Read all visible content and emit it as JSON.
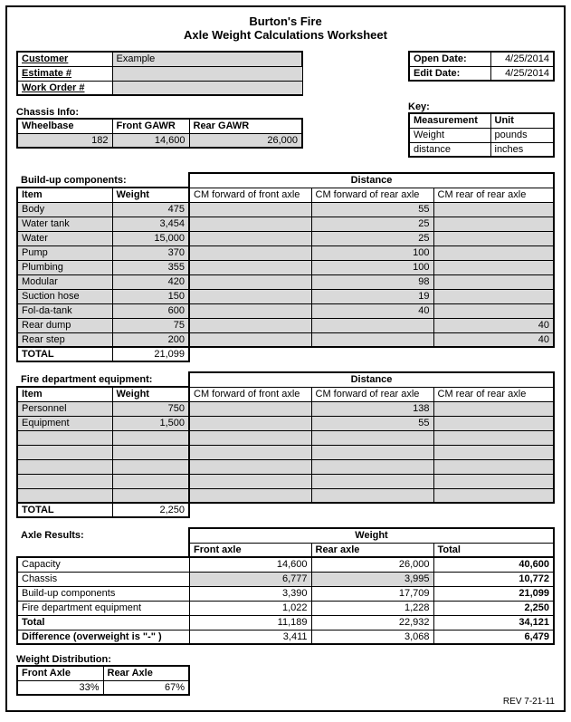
{
  "header": {
    "company": "Burton's Fire",
    "title": "Axle Weight Calculations Worksheet"
  },
  "customer_block": {
    "labels": {
      "customer": "Customer",
      "estimate": "Estimate #",
      "work_order": "Work Order #"
    },
    "customer": "Example",
    "estimate": "",
    "work_order": ""
  },
  "dates_block": {
    "labels": {
      "open": "Open Date:",
      "edit": "Edit Date:"
    },
    "open": "4/25/2014",
    "edit": "4/25/2014"
  },
  "key_block": {
    "heading": "Key:",
    "cols": {
      "measurement": "Measurement",
      "unit": "Unit"
    },
    "rows": [
      {
        "m": "Weight",
        "u": "pounds"
      },
      {
        "m": "distance",
        "u": "inches"
      }
    ]
  },
  "chassis": {
    "heading": "Chassis Info:",
    "cols": {
      "wheelbase": "Wheelbase",
      "front": "Front GAWR",
      "rear": "Rear GAWR"
    },
    "wheelbase": "182",
    "front": "14,600",
    "rear": "26,000"
  },
  "buildup": {
    "heading": "Build-up components:",
    "distance_heading": "Distance",
    "cols": {
      "item": "Item",
      "weight": "Weight",
      "d1": "CM forward of front axle",
      "d2": "CM forward of rear axle",
      "d3": "CM rear of rear axle"
    },
    "rows": [
      {
        "item": "Body",
        "weight": "475",
        "d1": "",
        "d2": "55",
        "d3": ""
      },
      {
        "item": "Water tank",
        "weight": "3,454",
        "d1": "",
        "d2": "25",
        "d3": ""
      },
      {
        "item": "Water",
        "weight": "15,000",
        "d1": "",
        "d2": "25",
        "d3": ""
      },
      {
        "item": "Pump",
        "weight": "370",
        "d1": "",
        "d2": "100",
        "d3": ""
      },
      {
        "item": "Plumbing",
        "weight": "355",
        "d1": "",
        "d2": "100",
        "d3": ""
      },
      {
        "item": "Modular",
        "weight": "420",
        "d1": "",
        "d2": "98",
        "d3": ""
      },
      {
        "item": "Suction hose",
        "weight": "150",
        "d1": "",
        "d2": "19",
        "d3": ""
      },
      {
        "item": "Fol-da-tank",
        "weight": "600",
        "d1": "",
        "d2": "40",
        "d3": ""
      },
      {
        "item": "Rear dump",
        "weight": "75",
        "d1": "",
        "d2": "",
        "d3": "40"
      },
      {
        "item": "Rear step",
        "weight": "200",
        "d1": "",
        "d2": "",
        "d3": "40"
      }
    ],
    "total_label": "TOTAL",
    "total": "21,099"
  },
  "fde": {
    "heading": "Fire department equipment:",
    "distance_heading": "Distance",
    "cols": {
      "item": "Item",
      "weight": "Weight",
      "d1": "CM forward of front axle",
      "d2": "CM forward of rear axle",
      "d3": "CM rear of rear axle"
    },
    "rows": [
      {
        "item": "Personnel",
        "weight": "750",
        "d1": "",
        "d2": "138",
        "d3": ""
      },
      {
        "item": "Equipment",
        "weight": "1,500",
        "d1": "",
        "d2": "55",
        "d3": ""
      },
      {
        "item": "",
        "weight": "",
        "d1": "",
        "d2": "",
        "d3": ""
      },
      {
        "item": "",
        "weight": "",
        "d1": "",
        "d2": "",
        "d3": ""
      },
      {
        "item": "",
        "weight": "",
        "d1": "",
        "d2": "",
        "d3": ""
      },
      {
        "item": "",
        "weight": "",
        "d1": "",
        "d2": "",
        "d3": ""
      },
      {
        "item": "",
        "weight": "",
        "d1": "",
        "d2": "",
        "d3": ""
      }
    ],
    "total_label": "TOTAL",
    "total": "2,250"
  },
  "axle_results": {
    "heading": "Axle Results:",
    "weight_heading": "Weight",
    "cols": {
      "front": "Front axle",
      "rear": "Rear axle",
      "total": "Total"
    },
    "rows": [
      {
        "label": "Capacity",
        "front": "14,600",
        "rear": "26,000",
        "total": "40,600",
        "bold_total": true,
        "shade": false
      },
      {
        "label": "Chassis",
        "front": "6,777",
        "rear": "3,995",
        "total": "10,772",
        "bold_total": true,
        "shade": true
      },
      {
        "label": "Build-up components",
        "front": "3,390",
        "rear": "17,709",
        "total": "21,099",
        "bold_total": true,
        "shade": false
      },
      {
        "label": "Fire department equipment",
        "front": "1,022",
        "rear": "1,228",
        "total": "2,250",
        "bold_total": true,
        "shade": false
      },
      {
        "label": "Total",
        "front": "11,189",
        "rear": "22,932",
        "total": "34,121",
        "bold_total": true,
        "shade": false,
        "bold_label": true
      },
      {
        "label": "Difference (overweight is \"-\" )",
        "front": "3,411",
        "rear": "3,068",
        "total": "6,479",
        "bold_total": true,
        "shade": false,
        "bold_label": true
      }
    ]
  },
  "distribution": {
    "heading": "Weight Distribution:",
    "cols": {
      "front": "Front Axle",
      "rear": "Rear Axle"
    },
    "front": "33%",
    "rear": "67%"
  },
  "rev": "REV 7-21-11"
}
